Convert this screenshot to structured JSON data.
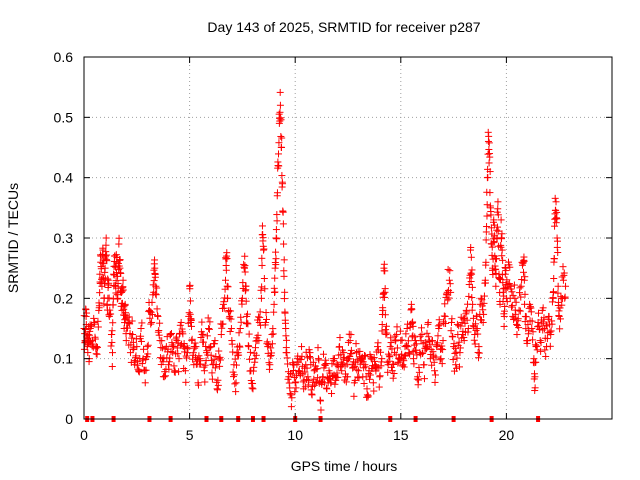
{
  "chart_data": {
    "type": "scatter",
    "title": "Day 143 of 2025, SRMTID for receiver p287",
    "xlabel": "GPS time / hours",
    "ylabel": "SRMTID / TECUs",
    "xlim": [
      0,
      25
    ],
    "ylim": [
      0,
      0.6
    ],
    "xticks": [
      0,
      5,
      10,
      15,
      20
    ],
    "yticks": [
      0,
      0.1,
      0.2,
      0.3,
      0.4,
      0.5,
      0.6
    ],
    "xtick_labels": [
      "0",
      "5",
      "10",
      "15",
      "20"
    ],
    "ytick_labels": [
      "0",
      "0.1",
      "0.2",
      "0.3",
      "0.4",
      "0.5",
      "0.6"
    ],
    "grid": true,
    "marker": "+",
    "color": "#ff0000",
    "series": [
      {
        "name": "SRMTID",
        "points": [
          [
            0.0,
            0.15
          ],
          [
            0.05,
            0.13
          ],
          [
            0.1,
            0.17
          ],
          [
            0.15,
            0.12
          ],
          [
            0.2,
            0.14
          ],
          [
            0.25,
            0.1
          ],
          [
            0.3,
            0.15
          ],
          [
            0.4,
            0.13
          ],
          [
            0.5,
            0.16
          ],
          [
            0.6,
            0.12
          ],
          [
            0.7,
            0.18
          ],
          [
            0.75,
            0.24
          ],
          [
            0.8,
            0.27
          ],
          [
            0.85,
            0.22
          ],
          [
            0.9,
            0.28
          ],
          [
            0.95,
            0.2
          ],
          [
            1.0,
            0.25
          ],
          [
            1.05,
            0.3
          ],
          [
            1.1,
            0.19
          ],
          [
            1.15,
            0.23
          ],
          [
            1.2,
            0.17
          ],
          [
            1.3,
            0.14
          ],
          [
            1.35,
            0.11
          ],
          [
            1.4,
            0.24
          ],
          [
            1.45,
            0.27
          ],
          [
            1.5,
            0.22
          ],
          [
            1.55,
            0.26
          ],
          [
            1.6,
            0.2
          ],
          [
            1.65,
            0.29
          ],
          [
            1.7,
            0.25
          ],
          [
            1.75,
            0.21
          ],
          [
            1.8,
            0.18
          ],
          [
            1.85,
            0.23
          ],
          [
            1.9,
            0.15
          ],
          [
            1.95,
            0.19
          ],
          [
            2.0,
            0.13
          ],
          [
            2.1,
            0.16
          ],
          [
            2.2,
            0.11
          ],
          [
            2.3,
            0.14
          ],
          [
            2.4,
            0.09
          ],
          [
            2.5,
            0.12
          ],
          [
            2.6,
            0.08
          ],
          [
            2.7,
            0.15
          ],
          [
            2.8,
            0.1
          ],
          [
            2.9,
            0.06
          ],
          [
            3.0,
            0.12
          ],
          [
            3.1,
            0.18
          ],
          [
            3.2,
            0.16
          ],
          [
            3.3,
            0.21
          ],
          [
            3.35,
            0.25
          ],
          [
            3.4,
            0.22
          ],
          [
            3.5,
            0.17
          ],
          [
            3.6,
            0.13
          ],
          [
            3.7,
            0.1
          ],
          [
            3.8,
            0.07
          ],
          [
            3.9,
            0.12
          ],
          [
            4.0,
            0.09
          ],
          [
            4.1,
            0.14
          ],
          [
            4.2,
            0.11
          ],
          [
            4.3,
            0.08
          ],
          [
            4.4,
            0.13
          ],
          [
            4.5,
            0.1
          ],
          [
            4.6,
            0.16
          ],
          [
            4.7,
            0.12
          ],
          [
            4.8,
            0.08
          ],
          [
            4.9,
            0.11
          ],
          [
            5.0,
            0.22
          ],
          [
            5.05,
            0.16
          ],
          [
            5.1,
            0.13
          ],
          [
            5.2,
            0.09
          ],
          [
            5.3,
            0.12
          ],
          [
            5.4,
            0.06
          ],
          [
            5.5,
            0.1
          ],
          [
            5.6,
            0.14
          ],
          [
            5.7,
            0.08
          ],
          [
            5.8,
            0.11
          ],
          [
            5.9,
            0.15
          ],
          [
            6.0,
            0.12
          ],
          [
            6.1,
            0.09
          ],
          [
            6.2,
            0.13
          ],
          [
            6.3,
            0.05
          ],
          [
            6.4,
            0.1
          ],
          [
            6.5,
            0.14
          ],
          [
            6.6,
            0.19
          ],
          [
            6.7,
            0.23
          ],
          [
            6.75,
            0.27
          ],
          [
            6.8,
            0.2
          ],
          [
            6.9,
            0.17
          ],
          [
            7.0,
            0.13
          ],
          [
            7.1,
            0.09
          ],
          [
            7.2,
            0.06
          ],
          [
            7.3,
            0.11
          ],
          [
            7.4,
            0.15
          ],
          [
            7.5,
            0.2
          ],
          [
            7.6,
            0.25
          ],
          [
            7.65,
            0.22
          ],
          [
            7.7,
            0.17
          ],
          [
            7.8,
            0.12
          ],
          [
            7.9,
            0.08
          ],
          [
            8.0,
            0.05
          ],
          [
            8.1,
            0.1
          ],
          [
            8.2,
            0.13
          ],
          [
            8.3,
            0.16
          ],
          [
            8.4,
            0.2
          ],
          [
            8.45,
            0.32
          ],
          [
            8.5,
            0.28
          ],
          [
            8.6,
            0.16
          ],
          [
            8.7,
            0.12
          ],
          [
            8.8,
            0.09
          ],
          [
            8.9,
            0.14
          ],
          [
            9.0,
            0.19
          ],
          [
            9.05,
            0.25
          ],
          [
            9.1,
            0.3
          ],
          [
            9.15,
            0.37
          ],
          [
            9.2,
            0.42
          ],
          [
            9.25,
            0.49
          ],
          [
            9.3,
            0.52
          ],
          [
            9.35,
            0.45
          ],
          [
            9.4,
            0.39
          ],
          [
            9.45,
            0.29
          ],
          [
            9.5,
            0.21
          ],
          [
            9.55,
            0.15
          ],
          [
            9.6,
            0.11
          ],
          [
            9.7,
            0.07
          ],
          [
            9.8,
            0.04
          ],
          [
            9.9,
            0.09
          ],
          [
            10.0,
            0.06
          ],
          [
            10.1,
            0.1
          ],
          [
            10.2,
            0.08
          ],
          [
            10.3,
            0.12
          ],
          [
            10.4,
            0.05
          ],
          [
            10.5,
            0.09
          ],
          [
            10.6,
            0.07
          ],
          [
            10.7,
            0.11
          ],
          [
            10.8,
            0.04
          ],
          [
            10.9,
            0.08
          ],
          [
            11.0,
            0.06
          ],
          [
            11.1,
            0.1
          ],
          [
            11.2,
            0.03
          ],
          [
            11.3,
            0.07
          ],
          [
            11.4,
            0.09
          ],
          [
            11.5,
            0.05
          ],
          [
            11.6,
            0.08
          ],
          [
            11.7,
            0.06
          ],
          [
            11.8,
            0.1
          ],
          [
            11.9,
            0.07
          ],
          [
            12.0,
            0.09
          ],
          [
            12.1,
            0.12
          ],
          [
            12.2,
            0.08
          ],
          [
            12.3,
            0.11
          ],
          [
            12.4,
            0.07
          ],
          [
            12.5,
            0.1
          ],
          [
            12.6,
            0.13
          ],
          [
            12.7,
            0.09
          ],
          [
            12.8,
            0.06
          ],
          [
            12.9,
            0.11
          ],
          [
            13.0,
            0.08
          ],
          [
            13.1,
            0.1
          ],
          [
            13.2,
            0.07
          ],
          [
            13.3,
            0.09
          ],
          [
            13.4,
            0.05
          ],
          [
            13.5,
            0.08
          ],
          [
            13.6,
            0.1
          ],
          [
            13.7,
            0.06
          ],
          [
            13.8,
            0.09
          ],
          [
            13.9,
            0.12
          ],
          [
            14.0,
            0.07
          ],
          [
            14.1,
            0.1
          ],
          [
            14.15,
            0.18
          ],
          [
            14.2,
            0.25
          ],
          [
            14.25,
            0.21
          ],
          [
            14.3,
            0.14
          ],
          [
            14.4,
            0.09
          ],
          [
            14.5,
            0.12
          ],
          [
            14.6,
            0.08
          ],
          [
            14.7,
            0.11
          ],
          [
            14.8,
            0.14
          ],
          [
            14.9,
            0.1
          ],
          [
            15.0,
            0.13
          ],
          [
            15.1,
            0.09
          ],
          [
            15.2,
            0.12
          ],
          [
            15.3,
            0.15
          ],
          [
            15.4,
            0.11
          ],
          [
            15.5,
            0.19
          ],
          [
            15.55,
            0.16
          ],
          [
            15.6,
            0.1
          ],
          [
            15.7,
            0.13
          ],
          [
            15.8,
            0.07
          ],
          [
            15.9,
            0.11
          ],
          [
            16.0,
            0.14
          ],
          [
            16.1,
            0.09
          ],
          [
            16.2,
            0.12
          ],
          [
            16.3,
            0.16
          ],
          [
            16.4,
            0.1
          ],
          [
            16.5,
            0.13
          ],
          [
            16.6,
            0.08
          ],
          [
            16.7,
            0.12
          ],
          [
            16.8,
            0.15
          ],
          [
            16.9,
            0.1
          ],
          [
            17.0,
            0.13
          ],
          [
            17.1,
            0.17
          ],
          [
            17.2,
            0.21
          ],
          [
            17.3,
            0.23
          ],
          [
            17.4,
            0.16
          ],
          [
            17.5,
            0.12
          ],
          [
            17.6,
            0.09
          ],
          [
            17.7,
            0.14
          ],
          [
            17.8,
            0.11
          ],
          [
            17.9,
            0.16
          ],
          [
            18.0,
            0.13
          ],
          [
            18.1,
            0.18
          ],
          [
            18.2,
            0.15
          ],
          [
            18.3,
            0.28
          ],
          [
            18.35,
            0.24
          ],
          [
            18.4,
            0.19
          ],
          [
            18.5,
            0.14
          ],
          [
            18.6,
            0.17
          ],
          [
            18.7,
            0.12
          ],
          [
            18.8,
            0.2
          ],
          [
            18.9,
            0.16
          ],
          [
            19.0,
            0.23
          ],
          [
            19.05,
            0.31
          ],
          [
            19.1,
            0.4
          ],
          [
            19.15,
            0.46
          ],
          [
            19.2,
            0.44
          ],
          [
            19.25,
            0.35
          ],
          [
            19.3,
            0.29
          ],
          [
            19.35,
            0.25
          ],
          [
            19.4,
            0.33
          ],
          [
            19.45,
            0.27
          ],
          [
            19.5,
            0.22
          ],
          [
            19.55,
            0.3
          ],
          [
            19.6,
            0.36
          ],
          [
            19.65,
            0.24
          ],
          [
            19.7,
            0.19
          ],
          [
            19.75,
            0.33
          ],
          [
            19.8,
            0.28
          ],
          [
            19.85,
            0.21
          ],
          [
            19.9,
            0.17
          ],
          [
            19.95,
            0.24
          ],
          [
            20.0,
            0.2
          ],
          [
            20.1,
            0.26
          ],
          [
            20.2,
            0.22
          ],
          [
            20.3,
            0.17
          ],
          [
            20.4,
            0.2
          ],
          [
            20.5,
            0.14
          ],
          [
            20.6,
            0.18
          ],
          [
            20.7,
            0.22
          ],
          [
            20.8,
            0.26
          ],
          [
            20.85,
            0.23
          ],
          [
            20.9,
            0.17
          ],
          [
            21.0,
            0.13
          ],
          [
            21.1,
            0.19
          ],
          [
            21.2,
            0.15
          ],
          [
            21.3,
            0.1
          ],
          [
            21.35,
            0.07
          ],
          [
            21.4,
            0.12
          ],
          [
            21.5,
            0.16
          ],
          [
            21.6,
            0.13
          ],
          [
            21.7,
            0.18
          ],
          [
            21.8,
            0.15
          ],
          [
            21.9,
            0.12
          ],
          [
            22.0,
            0.17
          ],
          [
            22.1,
            0.14
          ],
          [
            22.2,
            0.2
          ],
          [
            22.25,
            0.26
          ],
          [
            22.3,
            0.34
          ],
          [
            22.35,
            0.36
          ],
          [
            22.4,
            0.3
          ],
          [
            22.45,
            0.22
          ],
          [
            22.5,
            0.17
          ],
          [
            22.6,
            0.2
          ],
          [
            22.7,
            0.23
          ],
          [
            22.8,
            0.22
          ]
        ]
      }
    ],
    "zero_markers": [
      0.15,
      0.4,
      1.4,
      3.1,
      4.1,
      5.8,
      6.5,
      7.3,
      8.0,
      8.5,
      10.0,
      11.2,
      14.5,
      15.7,
      17.5,
      19.3,
      21.5
    ]
  }
}
